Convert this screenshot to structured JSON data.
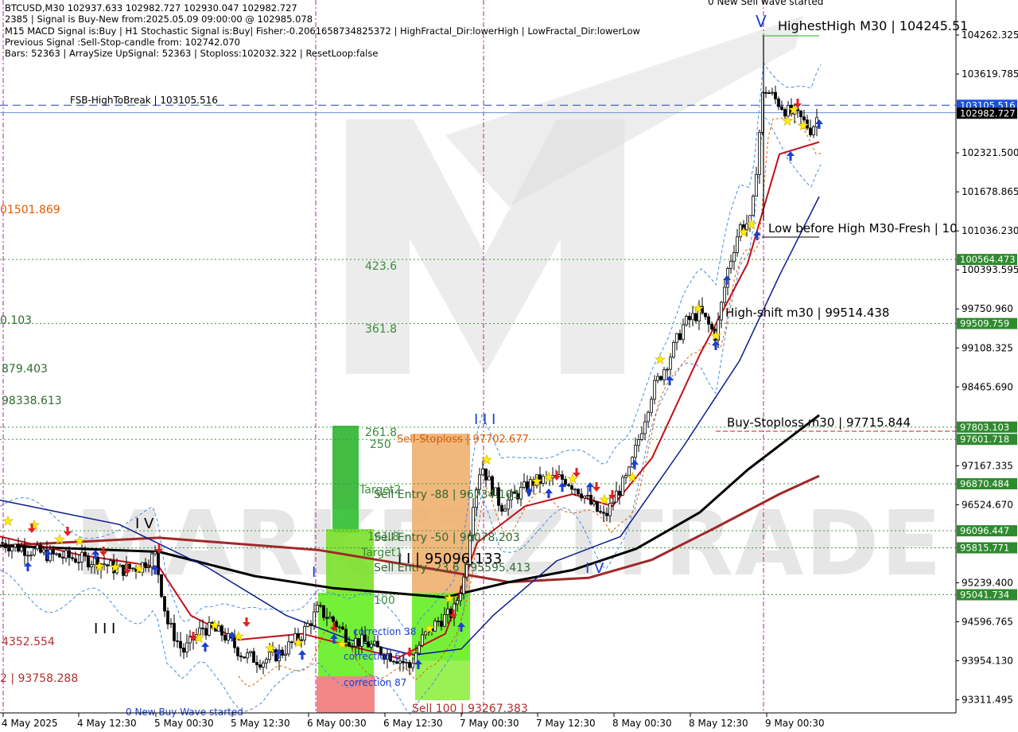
{
  "info_lines": [
    "BTCUSD,M30  102937.633 102982.727 102930.047 102982.727",
    "2385 | Signal is Buy-New from:2025.05.09 09:00:00 @ 102985.078",
    "M15 MACD Signal is:Buy | H1 Stochastic Signal is:Buy| Fisher:-0.2061658734825372 | HighFractal_Dir:lowerHigh | LowFractal_Dir:lowerLow",
    "Previous Signal :Sell-Stop-candle from: 102742.070",
    "Bars: 52363 | ArraySize UpSignal: 52363 | Stoploss:102032.322 | ResetLoop:false"
  ],
  "watermark": "MARKETZITRADE",
  "chart_data": {
    "type": "candlestick",
    "symbol": "BTCUSD",
    "timeframe": "M30",
    "ylim": [
      93000,
      104600
    ],
    "y_ticks": [
      104262.325,
      103619.785,
      102321.5,
      101678.865,
      101036.23,
      100393.595,
      99750.96,
      99108.325,
      98465.69,
      97167.335,
      96524.67,
      95239.4,
      94596.765,
      93954.13,
      93311.495
    ],
    "y_tick_labels": [
      "104262.325",
      "103619.785",
      "102321.500",
      "101678.865",
      "101036.230",
      "100393.595",
      "99750.960",
      "99108.325",
      "98465.690",
      "97167.335",
      "96524.670",
      "95239.400",
      "94596.765",
      "93954.130",
      "93311.495"
    ],
    "x_labels": [
      "4 May 2025",
      "4 May 12:30",
      "5 May 00:30",
      "5 May 12:30",
      "6 May 00:30",
      "6 May 12:30",
      "7 May 00:30",
      "7 May 12:30",
      "8 May 00:30",
      "8 May 12:30",
      "9 May 00:30"
    ],
    "price_tags": [
      {
        "label": "103105.516",
        "value": 103105.516,
        "bg": "#1a4fe0",
        "fg": "#ffffff"
      },
      {
        "label": "102982.727",
        "value": 102982.727,
        "bg": "#000000",
        "fg": "#ffffff"
      },
      {
        "label": "100564.473",
        "value": 100564.473,
        "bg": "#2e8b2e",
        "fg": "#ffffff"
      },
      {
        "label": "99509.759",
        "value": 99509.759,
        "bg": "#2e8b2e",
        "fg": "#ffffff"
      },
      {
        "label": "97803.103",
        "value": 97803.103,
        "bg": "#2e8b2e",
        "fg": "#ffffff"
      },
      {
        "label": "97601.718",
        "value": 97601.718,
        "bg": "#2e8b2e",
        "fg": "#ffffff"
      },
      {
        "label": "96870.484",
        "value": 96870.484,
        "bg": "#2e8b2e",
        "fg": "#ffffff"
      },
      {
        "label": "96096.447",
        "value": 96096.447,
        "bg": "#2e8b2e",
        "fg": "#ffffff"
      },
      {
        "label": "95815.771",
        "value": 95815.771,
        "bg": "#2e8b2e",
        "fg": "#ffffff"
      },
      {
        "label": "95041.734",
        "value": 95041.734,
        "bg": "#2e8b2e",
        "fg": "#ffffff"
      }
    ],
    "levels": [
      {
        "value": 103105.516,
        "color": "#1a3fd0",
        "style": "dash",
        "label": "FSB-HighToBreak | 103105.516"
      },
      {
        "value": 102982.727,
        "color": "#6a8fd0",
        "style": "solid",
        "label": ""
      },
      {
        "value": 100564.473,
        "color": "#3a9a3a",
        "style": "dot",
        "label": "423.6"
      },
      {
        "value": 99509.759,
        "color": "#3a9a3a",
        "style": "dot",
        "label": "361.8"
      },
      {
        "value": 97803.103,
        "color": "#3a9a3a",
        "style": "dot",
        "label": "261.8"
      },
      {
        "value": 97601.718,
        "color": "#3a9a3a",
        "style": "dot",
        "label": "250"
      },
      {
        "value": 96870.484,
        "color": "#3a9a3a",
        "style": "dot",
        "label": "Target2"
      },
      {
        "value": 96096.447,
        "color": "#3a9a3a",
        "style": "dot",
        "label": "161.8"
      },
      {
        "value": 95815.771,
        "color": "#3a9a3a",
        "style": "dot",
        "label": "Target1"
      },
      {
        "value": 95041.734,
        "color": "#3a9a3a",
        "style": "dot",
        "label": "100"
      }
    ],
    "annotations": [
      {
        "text": "HighestHigh    M30 | 104245.51",
        "color": "#000000"
      },
      {
        "text": "Low before High    M30-Fresh | 10",
        "color": "#000000"
      },
      {
        "text": "High-shift m30 | 99514.438",
        "color": "#000000"
      },
      {
        "text": "Buy-Stoploss m30 | 97715.844",
        "color": "#000000"
      },
      {
        "text": "Sell-Stoploss | 97702.677",
        "color": "#e05a00"
      },
      {
        "text": "Sell Entry -88 | 96734.101",
        "color": "#2e6b2e"
      },
      {
        "text": "Sell Entry -50 | 96078.203",
        "color": "#2e6b2e"
      },
      {
        "text": "Sell Entry -23.6 | 95595.413",
        "color": "#2e6b2e"
      },
      {
        "text": "I I | 95096.133",
        "color": "#000000"
      },
      {
        "text": "Sell 100 | 93267.383",
        "color": "#b03030"
      },
      {
        "text": "correction 38",
        "color": "#1a3fd0"
      },
      {
        "text": "correction 61",
        "color": "#1a3fd0"
      },
      {
        "text": "correction 87",
        "color": "#1a3fd0"
      },
      {
        "text": "0 New Buy Wave started",
        "color": "#1a3fd0"
      },
      {
        "text": "0 New Sell wave started",
        "color": "#000000"
      },
      {
        "text": "01501.869",
        "color": "#e05a00"
      },
      {
        "text": "0.103",
        "color": "#2e6b2e"
      },
      {
        "text": "879.403",
        "color": "#2e6b2e"
      },
      {
        "text": "98338.613",
        "color": "#2e6b2e"
      },
      {
        "text": "4352.554",
        "color": "#b03030"
      },
      {
        "text": "2 | 93758.288",
        "color": "#b03030"
      }
    ],
    "wave_labels": [
      "V",
      "I V",
      "I I I",
      "I",
      "I I I",
      "I V"
    ],
    "series": [
      {
        "name": "price",
        "type": "candlestick",
        "color": "#000000"
      },
      {
        "name": "",
        "type": "line",
        "color": "#c0101a"
      },
      {
        "name": "",
        "type": "line",
        "color": "#0b1a8a"
      },
      {
        "name": "",
        "type": "line",
        "color": "#000000"
      },
      {
        "name": "",
        "type": "line",
        "color": "#a02828"
      }
    ],
    "close_path": [
      [
        0,
        95900
      ],
      [
        30,
        95800
      ],
      [
        60,
        95700
      ],
      [
        90,
        95650
      ],
      [
        120,
        95600
      ],
      [
        150,
        95450
      ],
      [
        175,
        95500
      ],
      [
        195,
        95700
      ],
      [
        210,
        94600
      ],
      [
        230,
        94100
      ],
      [
        255,
        94500
      ],
      [
        280,
        94400
      ],
      [
        305,
        94050
      ],
      [
        330,
        93950
      ],
      [
        355,
        94100
      ],
      [
        380,
        94400
      ],
      [
        400,
        94800
      ],
      [
        420,
        94600
      ],
      [
        440,
        94300
      ],
      [
        460,
        94250
      ],
      [
        480,
        94100
      ],
      [
        500,
        94000
      ],
      [
        515,
        93850
      ],
      [
        530,
        94300
      ],
      [
        550,
        94600
      ],
      [
        570,
        94750
      ],
      [
        585,
        95400
      ],
      [
        595,
        96600
      ],
      [
        605,
        97200
      ],
      [
        615,
        96900
      ],
      [
        630,
        96500
      ],
      [
        650,
        96700
      ],
      [
        670,
        96900
      ],
      [
        690,
        96950
      ],
      [
        710,
        96950
      ],
      [
        730,
        96750
      ],
      [
        745,
        96500
      ],
      [
        760,
        96300
      ],
      [
        775,
        96700
      ],
      [
        790,
        97000
      ],
      [
        805,
        97700
      ],
      [
        820,
        98400
      ],
      [
        840,
        98900
      ],
      [
        860,
        99500
      ],
      [
        880,
        99700
      ],
      [
        900,
        99300
      ],
      [
        915,
        100400
      ],
      [
        930,
        101100
      ],
      [
        945,
        101200
      ],
      [
        960,
        103400
      ],
      [
        975,
        103200
      ],
      [
        990,
        103000
      ],
      [
        1005,
        102900
      ],
      [
        1020,
        102700
      ],
      [
        1030,
        102983
      ]
    ]
  }
}
